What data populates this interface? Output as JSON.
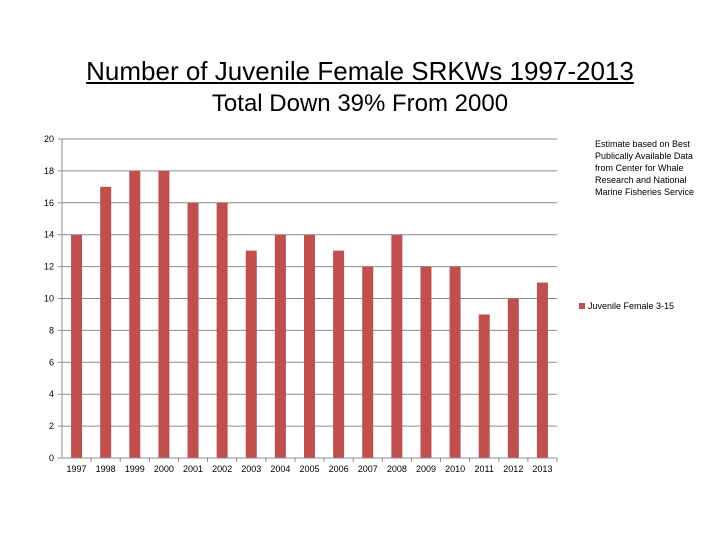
{
  "chart_data": {
    "type": "bar",
    "title": "Number of  Juvenile Female SRKWs 1997-2013",
    "subtitle": "Total Down 39% From 2000",
    "categories": [
      "1997",
      "1998",
      "1999",
      "2000",
      "2001",
      "2002",
      "2003",
      "2004",
      "2005",
      "2006",
      "2007",
      "2008",
      "2009",
      "2010",
      "2011",
      "2012",
      "2013"
    ],
    "series": [
      {
        "name": "Juvenile Female 3-15",
        "values": [
          14,
          17,
          18,
          18,
          16,
          16,
          13,
          14,
          14,
          13,
          12,
          14,
          12,
          12,
          9,
          10,
          11
        ]
      }
    ],
    "ylim": [
      0,
      20
    ],
    "yticks": [
      0,
      2,
      4,
      6,
      8,
      10,
      12,
      14,
      16,
      18,
      20
    ],
    "grid": true,
    "legend_position": "right",
    "annotation": "Estimate based on Best Publically Available Data from Center for Whale Research and National Marine Fisheries Service",
    "colors": {
      "bar": "#c0504d",
      "grid": "#8c8c8c",
      "axis": "#8c8c8c"
    }
  }
}
